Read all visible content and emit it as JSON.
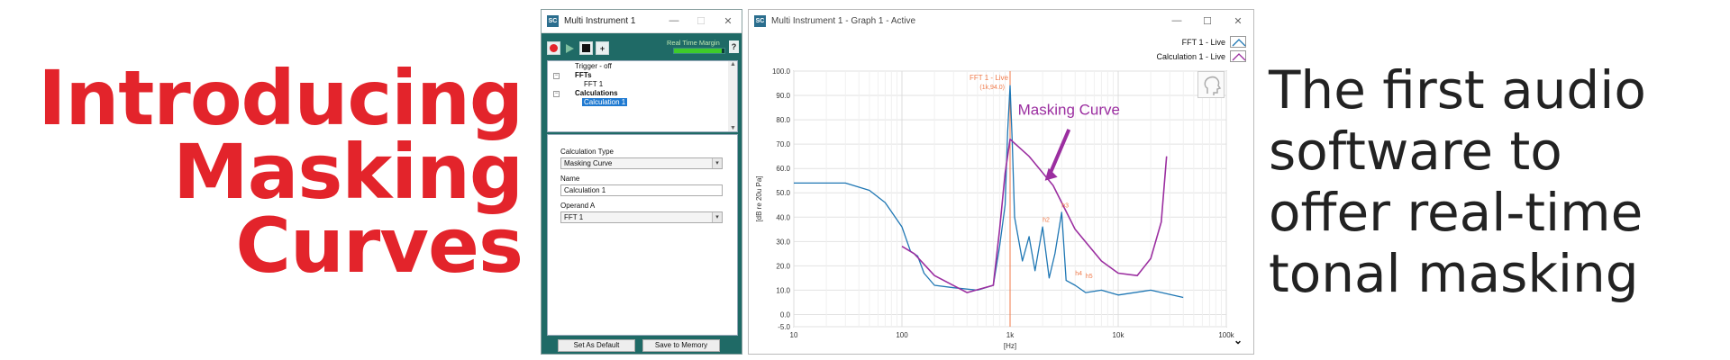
{
  "headline": [
    "Introducing",
    "Masking",
    "Curves"
  ],
  "tagline": [
    "The first audio",
    "software to",
    "offer real-time",
    "tonal masking"
  ],
  "colors": {
    "headline": "#e3242b",
    "fft": "#1f77b4",
    "calc": "#9b2ea0",
    "marker": "#f07a4a"
  },
  "mi_window": {
    "title": "Multi Instrument 1",
    "realtime_margin_label": "Real Time Margin",
    "realtime_margin": 0.95,
    "help": "?",
    "tree": {
      "trigger": "Trigger - off",
      "ffts_label": "FFTs",
      "fft1": "FFT 1",
      "calculations_label": "Calculations",
      "calc1": "Calculation 1"
    },
    "props": {
      "calc_type_label": "Calculation Type",
      "calc_type_value": "Masking Curve",
      "name_label": "Name",
      "name_value": "Calculation 1",
      "operand_label": "Operand A",
      "operand_value": "FFT 1"
    },
    "buttons": {
      "set_default": "Set As Default",
      "save_memory": "Save to Memory"
    }
  },
  "graph_window": {
    "title": "Multi Instrument 1 - Graph 1 - Active",
    "legend": [
      "FFT 1 - Live",
      "Calculation 1 - Live"
    ],
    "annotation": "Masking Curve",
    "marker_label": "FFT 1 - Live",
    "marker_value": "(1k,94.0)",
    "harmonics": [
      "h2",
      "h3",
      "h4",
      "h5"
    ],
    "y_axis_label": "[dB re 20u Pa]",
    "x_axis_label": "[Hz]"
  },
  "chart_data": {
    "type": "line",
    "x_scale": "log",
    "xlim": [
      10,
      100000
    ],
    "ylim": [
      -5,
      100
    ],
    "y_ticks": [
      "100.0",
      "90.0",
      "80.0",
      "70.0",
      "60.0",
      "50.0",
      "40.0",
      "30.0",
      "20.0",
      "10.0",
      "0.0",
      "-5.0"
    ],
    "x_ticks": [
      "10",
      "100",
      "1k",
      "10k",
      "100k"
    ],
    "grid": true,
    "series": [
      {
        "name": "FFT 1 - Live",
        "color": "#1f77b4",
        "points": [
          [
            10,
            54
          ],
          [
            30,
            54
          ],
          [
            50,
            51
          ],
          [
            70,
            46
          ],
          [
            100,
            36
          ],
          [
            120,
            26
          ],
          [
            140,
            24
          ],
          [
            160,
            17
          ],
          [
            200,
            12
          ],
          [
            300,
            11
          ],
          [
            500,
            10
          ],
          [
            700,
            12
          ],
          [
            800,
            28
          ],
          [
            900,
            45
          ],
          [
            950,
            75
          ],
          [
            1000,
            94
          ],
          [
            1050,
            70
          ],
          [
            1100,
            40
          ],
          [
            1300,
            22
          ],
          [
            1500,
            32
          ],
          [
            1700,
            18
          ],
          [
            2000,
            36
          ],
          [
            2300,
            15
          ],
          [
            2600,
            25
          ],
          [
            3000,
            42
          ],
          [
            3300,
            14
          ],
          [
            4000,
            12
          ],
          [
            5000,
            9
          ],
          [
            7000,
            10
          ],
          [
            10000,
            8
          ],
          [
            20000,
            10
          ],
          [
            40000,
            7
          ]
        ]
      },
      {
        "name": "Calculation 1 - Live",
        "color": "#9b2ea0",
        "points": [
          [
            100,
            28
          ],
          [
            130,
            25
          ],
          [
            200,
            16
          ],
          [
            400,
            9
          ],
          [
            700,
            12
          ],
          [
            800,
            35
          ],
          [
            900,
            58
          ],
          [
            1000,
            72
          ],
          [
            1500,
            65
          ],
          [
            2500,
            53
          ],
          [
            4000,
            35
          ],
          [
            7000,
            22
          ],
          [
            10000,
            17
          ],
          [
            15000,
            16
          ],
          [
            20000,
            23
          ],
          [
            25000,
            38
          ],
          [
            28000,
            65
          ]
        ]
      }
    ]
  }
}
